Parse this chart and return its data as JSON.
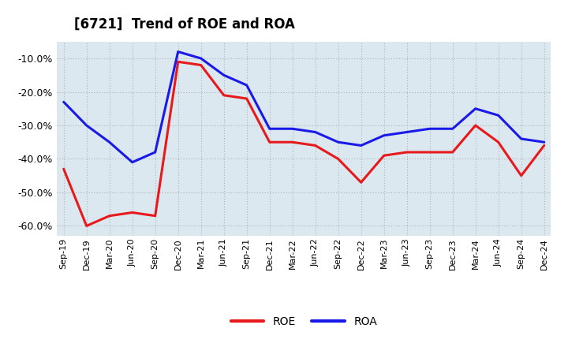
{
  "title": "[6721]  Trend of ROE and ROA",
  "labels": [
    "Sep-19",
    "Dec-19",
    "Mar-20",
    "Jun-20",
    "Sep-20",
    "Dec-20",
    "Mar-21",
    "Jun-21",
    "Sep-21",
    "Dec-21",
    "Mar-22",
    "Jun-22",
    "Sep-22",
    "Dec-22",
    "Mar-23",
    "Jun-23",
    "Sep-23",
    "Dec-23",
    "Mar-24",
    "Jun-24",
    "Sep-24",
    "Dec-24"
  ],
  "ROE": [
    -43,
    -60,
    -57,
    -56,
    -57,
    -11,
    -12,
    -21,
    -22,
    -35,
    -35,
    -36,
    -40,
    -47,
    -39,
    -38,
    -38,
    -38,
    -30,
    -35,
    -45,
    -36
  ],
  "ROA": [
    -23,
    -30,
    -35,
    -41,
    -38,
    -8,
    -10,
    -15,
    -18,
    -31,
    -31,
    -32,
    -35,
    -36,
    -33,
    -32,
    -31,
    -31,
    -25,
    -27,
    -34,
    -35
  ],
  "roe_color": "#e8191a",
  "roa_color": "#1a1ae8",
  "ylim": [
    -63,
    -5
  ],
  "yticks": [
    -60,
    -50,
    -40,
    -30,
    -20,
    -10
  ],
  "background_color": "#ffffff",
  "plot_bg_color": "#dce8f0",
  "grid_color": "#b0b0b0"
}
